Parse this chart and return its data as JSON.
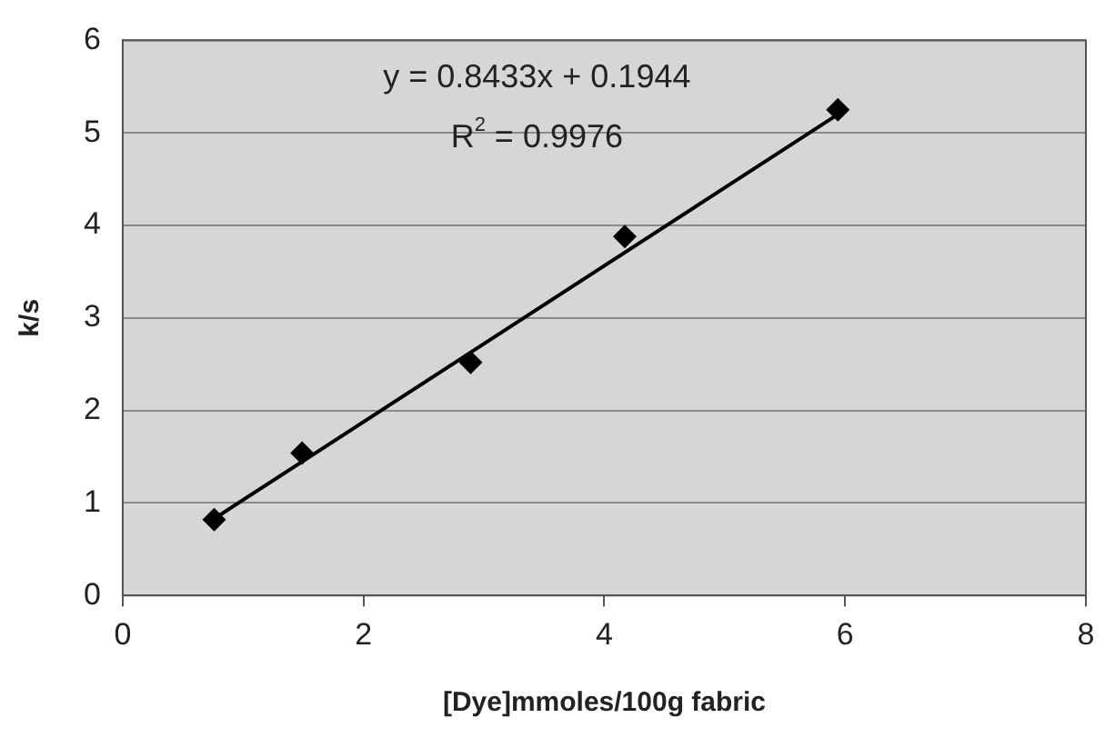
{
  "chart_data": {
    "type": "scatter",
    "xlabel": "[Dye]mmoles/100g fabric",
    "ylabel": "k/s",
    "series": [
      {
        "color": "#000000",
        "marker": "diamond",
        "x": [
          0.76,
          1.49,
          2.89,
          4.17,
          5.94
        ],
        "values": [
          0.82,
          1.54,
          2.52,
          3.88,
          5.25
        ]
      },
      {
        "type": "line",
        "color": "#000000",
        "marker": "none",
        "x": [
          0.76,
          5.94
        ],
        "values": [
          0.83,
          5.2
        ]
      }
    ],
    "xlim": [
      0,
      8
    ],
    "xticks": [
      0,
      2,
      4,
      6,
      8
    ],
    "ylim": [
      0,
      6
    ],
    "yticks": [
      0,
      1,
      2,
      3,
      4,
      5,
      6
    ],
    "grid": "y",
    "legend": false,
    "annotations": [
      "y = 0.8433x + 0.1944",
      "R$^{2}$ = 0.9976"
    ]
  }
}
